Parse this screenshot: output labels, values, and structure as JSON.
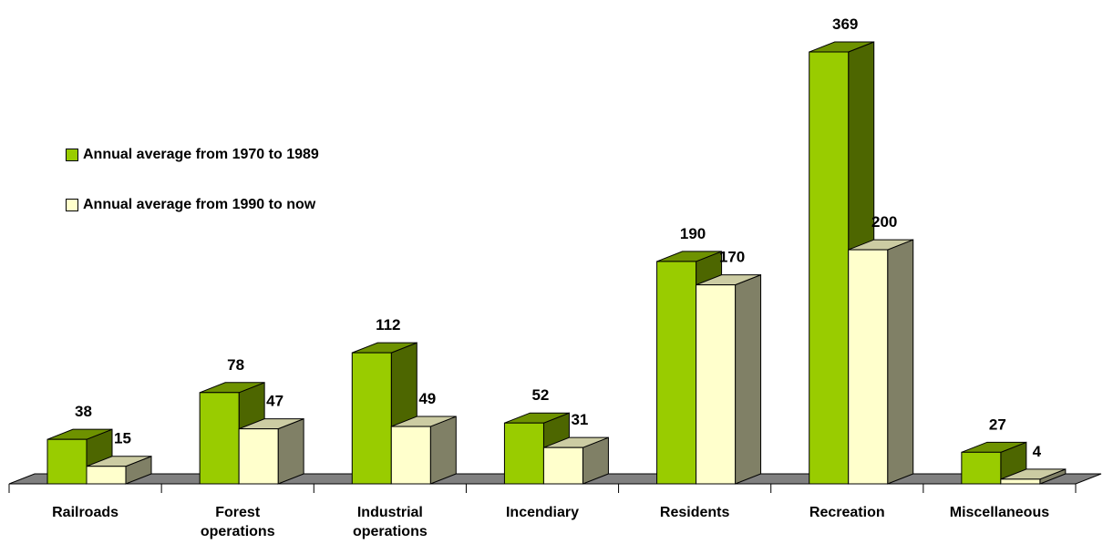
{
  "chart_data": {
    "type": "bar",
    "categories": [
      [
        "Railroads"
      ],
      [
        "Forest",
        "operations"
      ],
      [
        "Industrial",
        "operations"
      ],
      [
        "Incendiary"
      ],
      [
        "Residents"
      ],
      [
        "Recreation"
      ],
      [
        "Miscellaneous"
      ]
    ],
    "series": [
      {
        "name": "Annual average from 1970 to 1989",
        "values": [
          38,
          78,
          112,
          52,
          190,
          369,
          27
        ]
      },
      {
        "name": "Annual average from 1990 to now",
        "values": [
          15,
          47,
          49,
          31,
          170,
          200,
          4
        ]
      }
    ],
    "title": "",
    "xlabel": "",
    "ylabel": "",
    "ylim": [
      0,
      369
    ],
    "grid": false,
    "legend_position": "left"
  },
  "colors": {
    "series1_front": "#99cc00",
    "series1_side": "#4d6600",
    "series1_top": "#6e9200",
    "series2_front": "#ffffcc",
    "series2_side": "#808066",
    "series2_top": "#cccca3",
    "floor": "#808080",
    "outline": "#000000"
  }
}
